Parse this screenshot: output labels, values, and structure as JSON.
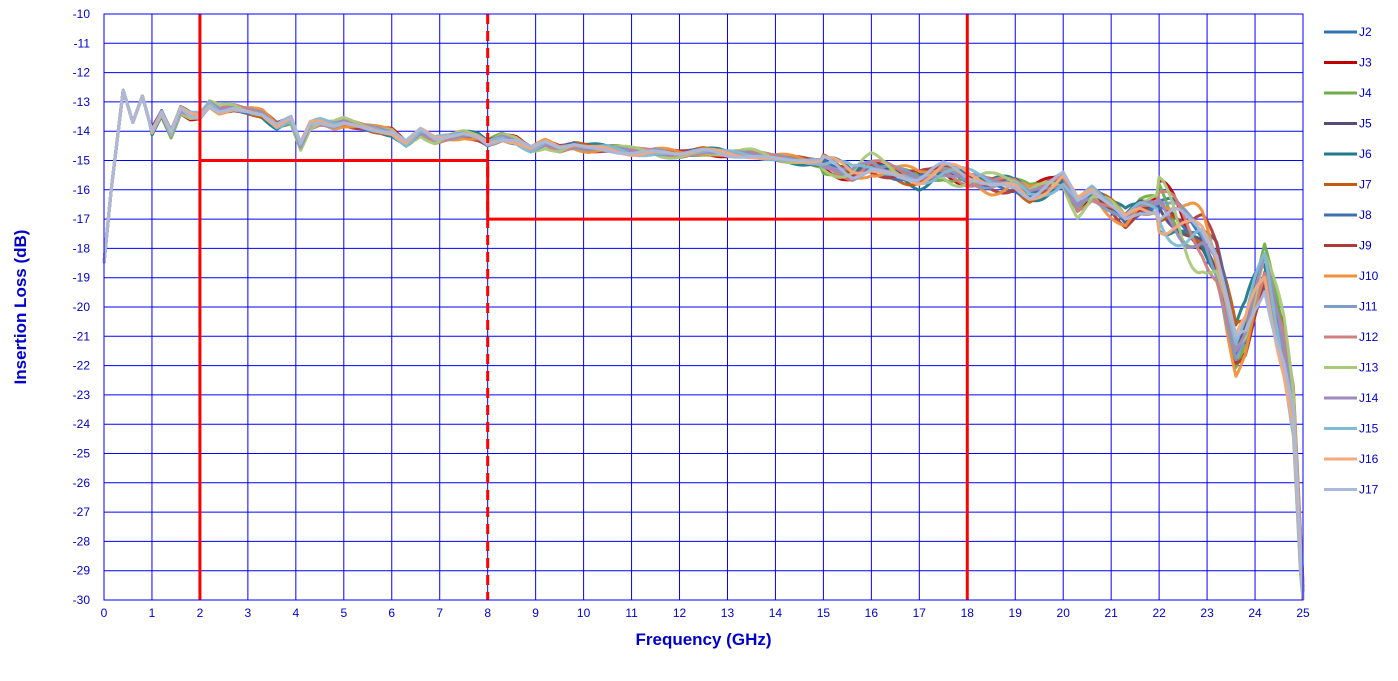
{
  "chart_data": {
    "type": "line",
    "title": "",
    "xlabel": "Frequency (GHz)",
    "ylabel": "Insertion Loss (dB)",
    "xlim": [
      0,
      25
    ],
    "ylim": [
      -30,
      -10
    ],
    "xticks": [
      "0",
      "1",
      "2",
      "3",
      "4",
      "5",
      "6",
      "7",
      "8",
      "9",
      "10",
      "11",
      "12",
      "13",
      "14",
      "15",
      "16",
      "17",
      "18",
      "19",
      "20",
      "21",
      "22",
      "23",
      "24",
      "25"
    ],
    "yticks": [
      "-10",
      "-11",
      "-12",
      "-13",
      "-14",
      "-15",
      "-16",
      "-17",
      "-18",
      "-19",
      "-20",
      "-21",
      "-22",
      "-23",
      "-24",
      "-25",
      "-26",
      "-27",
      "-28",
      "-29",
      "-30"
    ],
    "grid": true,
    "legend_position": "right",
    "gridline_color": "#0000ff",
    "limit_line_color": "#ff0000",
    "base_curve": {
      "x": [
        0,
        0.15,
        0.4,
        0.6,
        0.8,
        1.0,
        1.2,
        1.4,
        1.6,
        1.8,
        2.0,
        2.2,
        2.4,
        2.7,
        3.0,
        3.3,
        3.6,
        3.9,
        4.1,
        4.3,
        4.5,
        4.8,
        5.0,
        5.3,
        5.6,
        6.0,
        6.3,
        6.6,
        6.9,
        7.2,
        7.5,
        7.8,
        8.0,
        8.3,
        8.6,
        8.9,
        9.2,
        9.5,
        9.8,
        10.1,
        10.5,
        11.0,
        11.5,
        12.0,
        12.5,
        13.0,
        13.5,
        14.0,
        14.5,
        15.0,
        15.3,
        15.6,
        16.0,
        16.5,
        17.0,
        17.5,
        18.0,
        18.5,
        19.0,
        19.3,
        19.6,
        20.0,
        20.3,
        20.6,
        21.0,
        21.3,
        21.6,
        22.0,
        22.3,
        22.6,
        22.9,
        23.2,
        23.4,
        23.6,
        23.8,
        24.0,
        24.2,
        24.4,
        24.6,
        24.8,
        25.0
      ],
      "y": [
        -18.5,
        -16.0,
        -12.6,
        -13.7,
        -12.8,
        -14.0,
        -13.4,
        -14.1,
        -13.3,
        -13.5,
        -13.5,
        -13.1,
        -13.3,
        -13.2,
        -13.3,
        -13.4,
        -13.8,
        -13.6,
        -14.5,
        -13.8,
        -13.7,
        -13.8,
        -13.7,
        -13.8,
        -13.9,
        -14.0,
        -14.4,
        -14.0,
        -14.3,
        -14.2,
        -14.1,
        -14.2,
        -14.4,
        -14.2,
        -14.3,
        -14.6,
        -14.4,
        -14.6,
        -14.5,
        -14.6,
        -14.6,
        -14.7,
        -14.7,
        -14.8,
        -14.7,
        -14.8,
        -14.8,
        -14.9,
        -15.0,
        -15.1,
        -15.3,
        -15.5,
        -15.2,
        -15.4,
        -15.6,
        -15.3,
        -15.6,
        -15.8,
        -15.8,
        -16.1,
        -15.9,
        -15.6,
        -16.5,
        -16.1,
        -16.6,
        -17.0,
        -16.6,
        -16.5,
        -16.8,
        -17.3,
        -17.6,
        -18.5,
        -20.0,
        -21.5,
        -21.0,
        -19.8,
        -18.8,
        -20.2,
        -21.5,
        -23.5,
        -30.0
      ]
    },
    "series": [
      {
        "name": "J2",
        "color": "#2e75b6",
        "values_from": "base_curve",
        "offset_scale": 0.15,
        "phase": 0.3
      },
      {
        "name": "J3",
        "color": "#c00000",
        "values_from": "base_curve",
        "offset_scale": 0.25,
        "phase": 1.1
      },
      {
        "name": "J4",
        "color": "#70ad47",
        "values_from": "base_curve",
        "offset_scale": 0.3,
        "phase": 2.0
      },
      {
        "name": "J5",
        "color": "#5a4a78",
        "values_from": "base_curve",
        "offset_scale": 0.2,
        "phase": 2.7
      },
      {
        "name": "J6",
        "color": "#1f7a8c",
        "values_from": "base_curve",
        "offset_scale": 0.35,
        "phase": 3.4
      },
      {
        "name": "J7",
        "color": "#c55a11",
        "values_from": "base_curve",
        "offset_scale": 0.28,
        "phase": 4.2
      },
      {
        "name": "J8",
        "color": "#3f6fb0",
        "values_from": "base_curve",
        "offset_scale": 0.22,
        "phase": 4.9
      },
      {
        "name": "J9",
        "color": "#b03a3a",
        "values_from": "base_curve",
        "offset_scale": 0.26,
        "phase": 5.6
      },
      {
        "name": "J10",
        "color": "#f0913a",
        "values_from": "base_curve",
        "offset_scale": 0.32,
        "phase": 6.3
      },
      {
        "name": "J11",
        "color": "#7f9cc7",
        "values_from": "base_curve",
        "offset_scale": 0.18,
        "phase": 7.0
      },
      {
        "name": "J12",
        "color": "#d08080",
        "values_from": "base_curve",
        "offset_scale": 0.24,
        "phase": 7.8
      },
      {
        "name": "J13",
        "color": "#a9c97a",
        "values_from": "base_curve",
        "offset_scale": 0.4,
        "phase": 8.5
      },
      {
        "name": "J14",
        "color": "#9e8abf",
        "values_from": "base_curve",
        "offset_scale": 0.2,
        "phase": 9.2
      },
      {
        "name": "J15",
        "color": "#7fbcd6",
        "values_from": "base_curve",
        "offset_scale": 0.3,
        "phase": 9.9
      },
      {
        "name": "J16",
        "color": "#f6a97a",
        "values_from": "base_curve",
        "offset_scale": 0.27,
        "phase": 10.6
      },
      {
        "name": "J17",
        "color": "#aab8dc",
        "values_from": "base_curve",
        "offset_scale": 0.22,
        "phase": 11.3
      }
    ],
    "limit_lines": [
      {
        "style": "solid",
        "x": [
          2,
          2
        ],
        "y": [
          -10,
          -30
        ]
      },
      {
        "style": "dashed",
        "x": [
          8,
          8
        ],
        "y": [
          -10,
          -30
        ]
      },
      {
        "style": "solid",
        "x": [
          18,
          18
        ],
        "y": [
          -10,
          -30
        ]
      },
      {
        "style": "solid",
        "x": [
          2,
          8
        ],
        "y": [
          -15,
          -15
        ]
      },
      {
        "style": "solid",
        "x": [
          8,
          8
        ],
        "y": [
          -15,
          -17
        ]
      },
      {
        "style": "solid",
        "x": [
          8,
          18
        ],
        "y": [
          -17,
          -17
        ]
      }
    ]
  }
}
